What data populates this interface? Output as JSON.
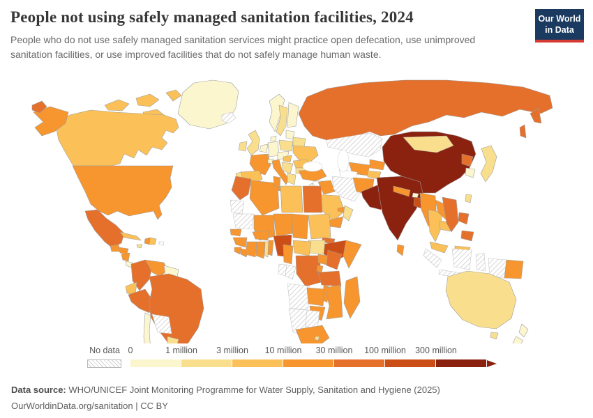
{
  "header": {
    "title": "People not using safely managed sanitation facilities, 2024",
    "subtitle": "People who do not use safely managed sanitation services might practice open defecation, use unimproved sanitation facilities, or use improved facilities that do not safely manage human waste.",
    "logo": {
      "line1": "Our World",
      "line2": "in Data"
    }
  },
  "legend": {
    "no_data_label": "No data"
  },
  "footer": {
    "source_label": "Data source:",
    "source_text": "WHO/UNICEF Joint Monitoring Programme for Water Supply, Sanitation and Hygiene (2025)",
    "license_text": "OurWorldinData.org/sanitation | CC BY"
  },
  "chart_data": {
    "type": "choropleth_map",
    "title": "People not using safely managed sanitation facilities, 2024",
    "year": "2024",
    "unit": "people",
    "legend_style": "binned color ramp with arrow on last bin, hatched swatch for no data",
    "bins": [
      {
        "tick": "0",
        "range": "0-1 million",
        "color": "#FCF6CF"
      },
      {
        "tick": "1 million",
        "range": "1-3 million",
        "color": "#F9DF8D"
      },
      {
        "tick": "3 million",
        "range": "3-10 million",
        "color": "#FBC158"
      },
      {
        "tick": "10 million",
        "range": "10-30 million",
        "color": "#F7952F"
      },
      {
        "tick": "30 million",
        "range": "30-100 million",
        "color": "#E4702B"
      },
      {
        "tick": "100 million",
        "range": "100-300 million",
        "color": "#CB4E16"
      },
      {
        "tick": "300 million",
        "range": "300+ million",
        "color": "#8B2210"
      }
    ],
    "no_data_style": {
      "fill": "hatched",
      "line_color": "#cccccc"
    },
    "countries": {
      "greenland": 0,
      "canada": 2,
      "united-states": 3,
      "mexico": 4,
      "guatemala": 3,
      "honduras": 3,
      "nicaragua": 3,
      "costa-rica": 0,
      "panama": 1,
      "cuba": 2,
      "jamaica": 1,
      "haiti": 3,
      "dominican-republic": 2,
      "puerto-rico": "no-data",
      "colombia": 4,
      "venezuela": 3,
      "guyana": 0,
      "ecuador": 2,
      "peru": 4,
      "brazil": 4,
      "bolivia": "no-data",
      "paraguay": 1,
      "uruguay": "no-data",
      "argentina": 3,
      "chile": 0,
      "iceland": "no-data",
      "norway": 0,
      "sweden": 1,
      "finland": 0,
      "denmark": 0,
      "united-kingdom": 1,
      "ireland": 1,
      "netherlands": 0,
      "germany": 0,
      "france": 3,
      "spain": 2,
      "portugal": 1,
      "switzerland": 0,
      "italy": 3,
      "austria": 0,
      "poland": 1,
      "baltics": 0,
      "belarus": 1,
      "ukraine": 2,
      "romania": 2,
      "hungary": 2,
      "serbia": 1,
      "greece": 1,
      "bulgaria": 1,
      "russia": 4,
      "kazakhstan": "no-data",
      "turkey": 3,
      "syria": "none",
      "israel": 0,
      "jordan": 1,
      "iraq": 3,
      "iran": "no-data",
      "saudi-arabia": 2,
      "yemen": 3,
      "oman": 1,
      "united-arab-emirates": 3,
      "morocco": 4,
      "algeria": 3,
      "tunisia": 3,
      "libya": 2,
      "egypt": 4,
      "western-sahara": "no-data",
      "mauritania": "no-data",
      "mali": 3,
      "senegal": 3,
      "guinea": 3,
      "sierra-leone": 3,
      "liberia": 3,
      "cote-divoire": 3,
      "burkina-faso": 3,
      "ghana": 3,
      "togo": 1,
      "benin": 3,
      "niger": 3,
      "nigeria": 5,
      "chad": 3,
      "sudan": 2,
      "eritrea": 4,
      "ethiopia": 5,
      "somalia": 3,
      "south-sudan": 1,
      "central-african-republic": 2,
      "cameroon": 3,
      "gabon": "no-data",
      "congo": "no-data",
      "democratic-republic-of-congo": 4,
      "uganda": 3,
      "kenya": 4,
      "rwanda": 3,
      "tanzania": 4,
      "angola": "no-data",
      "zambia": 3,
      "malawi": 3,
      "mozambique": 3,
      "zimbabwe": 3,
      "botswana": "no-data",
      "namibia": "no-data",
      "south-africa": 3,
      "lesotho": 1,
      "madagascar": 3,
      "uzbekistan": 3,
      "turkmenistan": "none",
      "kyrgyzstan": 3,
      "tajikistan": 2,
      "afghanistan": 3,
      "pakistan": 6,
      "india": 6,
      "nepal": 3,
      "bhutan": 0,
      "bangladesh": 5,
      "sri-lanka": 3,
      "myanmar": 3,
      "thailand": 2,
      "laos": 3,
      "cambodia": 2,
      "vietnam": 4,
      "malaysia": 2,
      "indonesia": "no-data",
      "philippines": 4,
      "papua-new-guinea": 3,
      "taiwan": 1,
      "china": 6,
      "mongolia": 1,
      "north-korea": 4,
      "south-korea": 0,
      "japan": 1,
      "australia": 1,
      "new-zealand": 0
    }
  }
}
